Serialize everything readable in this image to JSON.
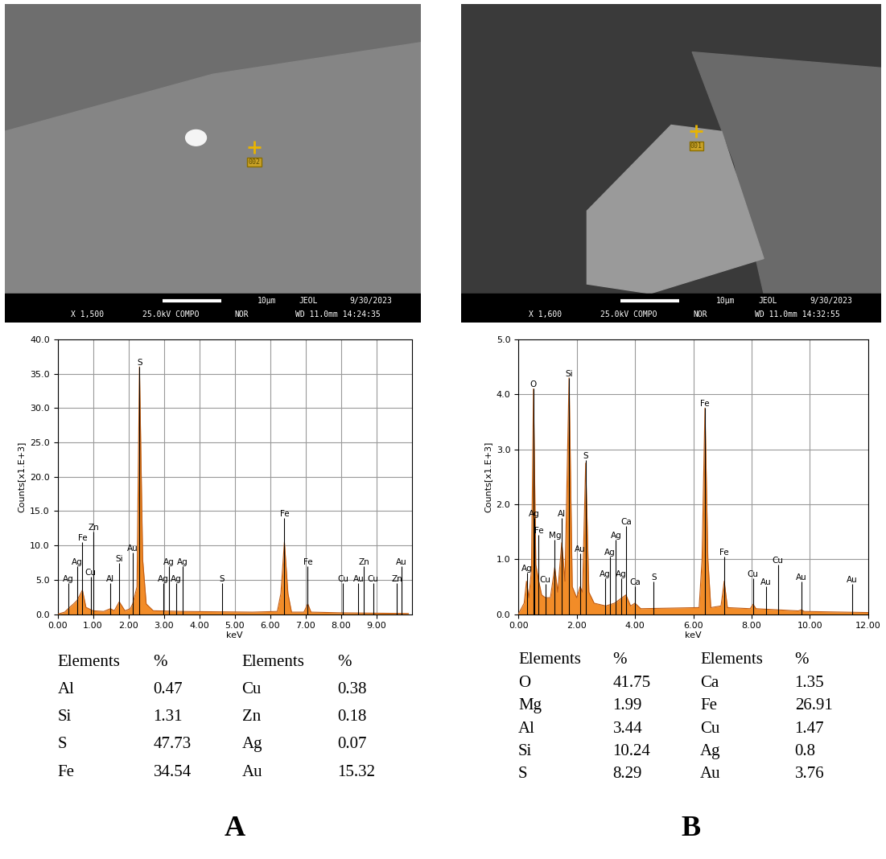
{
  "chart_data": [
    {
      "type": "area",
      "x_label": "keV",
      "y_label": "Counts[x1.E+3]",
      "color": "#f28c28",
      "grid": true,
      "x": [
        0.0,
        0.2,
        0.3,
        0.45,
        0.55,
        0.7,
        0.8,
        1.0,
        1.3,
        1.49,
        1.6,
        1.74,
        1.9,
        2.05,
        2.12,
        2.24,
        2.31,
        2.4,
        2.5,
        2.7,
        3.5,
        5.5,
        6.2,
        6.3,
        6.4,
        6.5,
        6.6,
        6.95,
        7.06,
        7.15,
        8.0,
        9.9
      ],
      "values": [
        0.0,
        0.3,
        0.8,
        1.5,
        2.0,
        3.5,
        1.0,
        0.5,
        0.4,
        0.8,
        0.5,
        1.8,
        0.5,
        0.8,
        1.5,
        4.0,
        36.0,
        8.0,
        1.5,
        0.5,
        0.4,
        0.3,
        0.4,
        3.0,
        10.5,
        3.0,
        0.3,
        0.3,
        1.5,
        0.3,
        0.2,
        0.1
      ],
      "xlim": [
        0,
        10
      ],
      "xticks": [
        {
          "value": 0,
          "label": "0.00"
        },
        {
          "value": 1,
          "label": "1.00"
        },
        {
          "value": 2,
          "label": "2.00"
        },
        {
          "value": 3,
          "label": "3.00"
        },
        {
          "value": 4,
          "label": "4.00"
        },
        {
          "value": 5,
          "label": "5.00"
        },
        {
          "value": 6,
          "label": "6.00"
        },
        {
          "value": 7,
          "label": "7.00"
        },
        {
          "value": 8,
          "label": "8.00"
        },
        {
          "value": 9,
          "label": "9.00"
        }
      ],
      "ylim": [
        0,
        40
      ],
      "yticks": [
        {
          "value": 0,
          "label": "0.0"
        },
        {
          "value": 5,
          "label": "5.0"
        },
        {
          "value": 10,
          "label": "10.0"
        },
        {
          "value": 15,
          "label": "15.0"
        },
        {
          "value": 20,
          "label": "20.0"
        },
        {
          "value": 25,
          "label": "25.0"
        },
        {
          "value": 30,
          "label": "30.0"
        },
        {
          "value": 35,
          "label": "35.0"
        },
        {
          "value": 40,
          "label": "40.0"
        }
      ],
      "element_lines": [
        {
          "label": "Ag",
          "energy": 0.3,
          "height": 4.5
        },
        {
          "label": "Ag",
          "energy": 0.55,
          "height": 7
        },
        {
          "label": "Fe",
          "energy": 0.7,
          "height": 10.5
        },
        {
          "label": "Cu",
          "energy": 0.93,
          "height": 5.5
        },
        {
          "label": "Zn",
          "energy": 1.01,
          "height": 12
        },
        {
          "label": "Al",
          "energy": 1.49,
          "height": 4.5
        },
        {
          "label": "Si",
          "energy": 1.74,
          "height": 7.5
        },
        {
          "label": "Au",
          "energy": 2.12,
          "height": 9
        },
        {
          "label": "S",
          "energy": 2.31,
          "height": 36
        },
        {
          "label": "Ag",
          "energy": 2.98,
          "height": 4.5
        },
        {
          "label": "Ag",
          "energy": 3.15,
          "height": 7
        },
        {
          "label": "Ag",
          "energy": 3.35,
          "height": 4.5
        },
        {
          "label": "Ag",
          "energy": 3.52,
          "height": 7
        },
        {
          "label": "S",
          "energy": 4.64,
          "height": 4.5
        },
        {
          "label": "Fe",
          "energy": 6.4,
          "height": 14
        },
        {
          "label": "Fe",
          "energy": 7.06,
          "height": 7
        },
        {
          "label": "Cu",
          "energy": 8.05,
          "height": 4.5
        },
        {
          "label": "Au",
          "energy": 8.49,
          "height": 4.5
        },
        {
          "label": "Zn",
          "energy": 8.64,
          "height": 7
        },
        {
          "label": "Cu",
          "energy": 8.9,
          "height": 4.5
        },
        {
          "label": "Zn",
          "energy": 9.57,
          "height": 4.5
        },
        {
          "label": "Au",
          "energy": 9.71,
          "height": 7
        }
      ]
    },
    {
      "type": "area",
      "x_label": "keV",
      "y_label": "Counts[x1.E+3]",
      "color": "#f28c28",
      "grid": true,
      "x": [
        0.0,
        0.2,
        0.28,
        0.36,
        0.45,
        0.52,
        0.6,
        0.7,
        0.8,
        0.93,
        1.1,
        1.25,
        1.35,
        1.49,
        1.6,
        1.74,
        1.85,
        2.0,
        2.12,
        2.2,
        2.31,
        2.42,
        2.6,
        3.0,
        3.3,
        3.69,
        3.85,
        4.0,
        4.2,
        6.2,
        6.3,
        6.4,
        6.5,
        6.6,
        6.95,
        7.06,
        7.17,
        7.95,
        8.05,
        8.15,
        9.6,
        9.71,
        9.8,
        12.0
      ],
      "values": [
        0.0,
        0.2,
        0.6,
        0.3,
        0.8,
        4.1,
        0.9,
        0.6,
        0.35,
        0.3,
        0.3,
        0.85,
        0.4,
        1.3,
        0.6,
        4.3,
        0.5,
        0.3,
        0.5,
        0.4,
        2.75,
        0.4,
        0.2,
        0.15,
        0.2,
        0.35,
        0.15,
        0.2,
        0.1,
        0.12,
        1.0,
        3.75,
        1.0,
        0.12,
        0.15,
        0.6,
        0.12,
        0.1,
        0.18,
        0.1,
        0.06,
        0.08,
        0.05,
        0.03
      ],
      "xlim": [
        0,
        12
      ],
      "xticks": [
        {
          "value": 0,
          "label": "0.00"
        },
        {
          "value": 2,
          "label": "2.00"
        },
        {
          "value": 4,
          "label": "4.00"
        },
        {
          "value": 6,
          "label": "6.00"
        },
        {
          "value": 8,
          "label": "8.00"
        },
        {
          "value": 10,
          "label": "10.00"
        },
        {
          "value": 12,
          "label": "12.00"
        }
      ],
      "ylim": [
        0,
        5
      ],
      "yticks": [
        {
          "value": 0,
          "label": "0.0"
        },
        {
          "value": 1,
          "label": "1.0"
        },
        {
          "value": 2,
          "label": "2.0"
        },
        {
          "value": 3,
          "label": "3.0"
        },
        {
          "value": 4,
          "label": "4.0"
        },
        {
          "value": 5,
          "label": "5.0"
        }
      ],
      "element_lines": [
        {
          "label": "Ag",
          "energy": 0.3,
          "height": 0.75
        },
        {
          "label": "O",
          "energy": 0.52,
          "height": 4.1
        },
        {
          "label": "Ag",
          "energy": 0.55,
          "height": 1.75
        },
        {
          "label": "Fe",
          "energy": 0.7,
          "height": 1.45
        },
        {
          "label": "Cu",
          "energy": 0.93,
          "height": 0.55
        },
        {
          "label": "Mg",
          "energy": 1.25,
          "height": 1.35
        },
        {
          "label": "Al",
          "energy": 1.49,
          "height": 1.75
        },
        {
          "label": "Si",
          "energy": 1.74,
          "height": 4.3
        },
        {
          "label": "Au",
          "energy": 2.12,
          "height": 1.1
        },
        {
          "label": "S",
          "energy": 2.31,
          "height": 2.8
        },
        {
          "label": "Ag",
          "energy": 2.98,
          "height": 0.65
        },
        {
          "label": "Ag",
          "energy": 3.15,
          "height": 1.05
        },
        {
          "label": "Ag",
          "energy": 3.35,
          "height": 1.35
        },
        {
          "label": "Ag",
          "energy": 3.52,
          "height": 0.65
        },
        {
          "label": "Ca",
          "energy": 3.69,
          "height": 1.6
        },
        {
          "label": "Ca",
          "energy": 4.01,
          "height": 0.5
        },
        {
          "label": "S",
          "energy": 4.64,
          "height": 0.6
        },
        {
          "label": "Fe",
          "energy": 6.4,
          "height": 3.75
        },
        {
          "label": "Fe",
          "energy": 7.06,
          "height": 1.05
        },
        {
          "label": "Cu",
          "energy": 8.05,
          "height": 0.65
        },
        {
          "label": "Au",
          "energy": 8.49,
          "height": 0.5
        },
        {
          "label": "Cu",
          "energy": 8.9,
          "height": 0.9
        },
        {
          "label": "Au",
          "energy": 9.71,
          "height": 0.6
        },
        {
          "label": "Au",
          "energy": 11.44,
          "height": 0.55
        }
      ]
    }
  ],
  "panels": [
    {
      "label": "A",
      "sem_image": {
        "marker_label": "002",
        "info_bar": {
          "line1": [
            "10µm",
            "JEOL",
            "9/30/2023"
          ],
          "line2": [
            "X 1,500",
            "25.0kV COMPO",
            "NOR",
            "WD 11.0mm 14:24:35"
          ]
        }
      },
      "table": {
        "columns": [
          "Elements",
          "%",
          "Elements",
          "%"
        ],
        "rows": [
          [
            "Al",
            0.47,
            "Cu",
            0.38
          ],
          [
            "Si",
            1.31,
            "Zn",
            0.18
          ],
          [
            "S",
            47.73,
            "Ag",
            0.07
          ],
          [
            "Fe",
            34.54,
            "Au",
            15.32
          ]
        ]
      }
    },
    {
      "label": "B",
      "sem_image": {
        "marker_label": "001",
        "info_bar": {
          "line1": [
            "10µm",
            "JEOL",
            "9/30/2023"
          ],
          "line2": [
            "X 1,600",
            "25.0kV COMPO",
            "NOR",
            "WD 11.0mm 14:32:55"
          ]
        }
      },
      "table": {
        "columns": [
          "Elements",
          "%",
          "Elements",
          "%"
        ],
        "rows": [
          [
            "O",
            41.75,
            "Ca",
            1.35
          ],
          [
            "Mg",
            1.99,
            "Fe",
            26.91
          ],
          [
            "Al",
            3.44,
            "Cu",
            1.47
          ],
          [
            "Si",
            10.24,
            "Ag",
            0.8
          ],
          [
            "S",
            8.29,
            "Au",
            3.76
          ]
        ]
      }
    }
  ]
}
